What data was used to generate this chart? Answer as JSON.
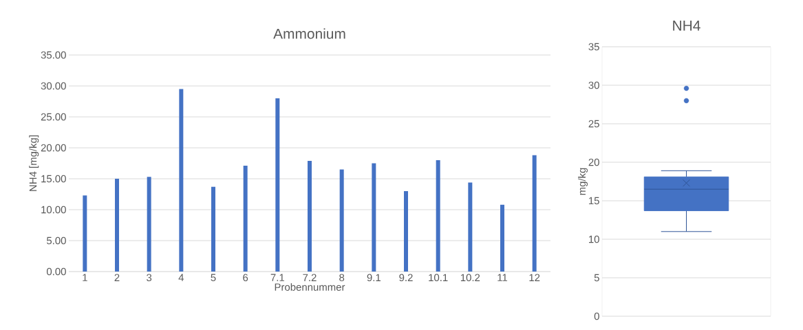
{
  "chart_data": [
    {
      "type": "bar",
      "title": "Ammonium",
      "xlabel": "Probennummer",
      "ylabel": "NH4 [mg/kg]",
      "categories": [
        "1",
        "2",
        "3",
        "4",
        "5",
        "6",
        "7.1",
        "7.2",
        "8",
        "9.1",
        "9.2",
        "10.1",
        "10.2",
        "11",
        "12"
      ],
      "values": [
        12.3,
        15.0,
        15.3,
        29.5,
        13.7,
        17.1,
        28.0,
        17.9,
        16.5,
        17.5,
        13.0,
        18.0,
        14.4,
        10.8,
        18.8
      ],
      "color": "#4472c4",
      "ylim": [
        0,
        35
      ],
      "yticks": [
        {
          "value": 0,
          "label": "0.00"
        },
        {
          "value": 5,
          "label": "5.00"
        },
        {
          "value": 10,
          "label": "10.00"
        },
        {
          "value": 15,
          "label": "15.00"
        },
        {
          "value": 20,
          "label": "20.00"
        },
        {
          "value": 25,
          "label": "25.00"
        },
        {
          "value": 30,
          "label": "30.00"
        },
        {
          "value": 35,
          "label": "35.00"
        }
      ],
      "grid": "y"
    },
    {
      "type": "box",
      "title": "NH4",
      "ylabel": "mg/kg",
      "categories": [
        null
      ],
      "boxes": [
        {
          "low": 11.0,
          "q1": 13.7,
          "median": 16.5,
          "q3": 18.1,
          "high": 18.9,
          "mean": 17.3,
          "outliers": [
            29.6,
            28.0
          ]
        }
      ],
      "color": "#4472c4",
      "ylim": [
        0,
        35
      ],
      "yticks": [
        0,
        5,
        10,
        15,
        20,
        25,
        30,
        35
      ],
      "grid": "y"
    }
  ]
}
